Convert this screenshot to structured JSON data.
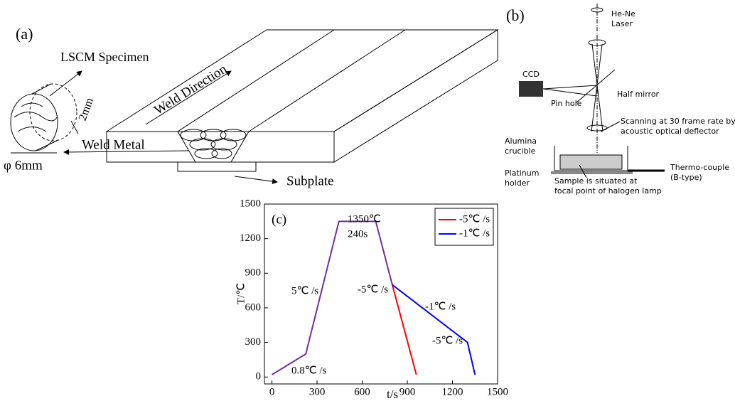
{
  "diagram_a": {
    "label": "(a)",
    "specimen": "LSCM Specimen",
    "direction": "Weld Direction",
    "metal": "Weld Metal",
    "thickness": "2mm",
    "diameter": "φ 6mm",
    "subplate": "Subplate"
  },
  "diagram_b": {
    "label": "(b)",
    "laser": [
      "He-Ne",
      "Laser"
    ],
    "ccd": "CCD",
    "pinhole": "Pin hole",
    "mirror": "Half mirror",
    "scanning": [
      "Scanning at 30 frame rate by",
      "acoustic optical deflector"
    ],
    "crucible": [
      "Alumina",
      "crucible"
    ],
    "thermo": [
      "Thermo-couple",
      "(B-type)"
    ],
    "holder": [
      "Platinum",
      "holder"
    ],
    "sample": [
      "Sample is situated at",
      "focal point of halogen lamp"
    ]
  },
  "chart_data": {
    "type": "line",
    "label": "(c)",
    "x_label": "t/s",
    "y_label": "T/℃",
    "xlim": [
      -50,
      1500
    ],
    "xticks": [
      0,
      300,
      600,
      900,
      1200,
      1500
    ],
    "ylim": [
      -60,
      1500
    ],
    "yticks": [
      0,
      300,
      600,
      900,
      1200,
      1500
    ],
    "legend": "upper right",
    "series": [
      {
        "color": "#7030a0",
        "x": [
          0,
          225,
          445,
          690,
          800
        ],
        "values": [
          20,
          200,
          1350,
          1350,
          800
        ]
      },
      {
        "name": "-5℃ /s",
        "color": "#ff0000",
        "x": [
          800,
          960
        ],
        "values": [
          800,
          20
        ]
      },
      {
        "name": "-1℃ /s",
        "color": "#0000ff",
        "x": [
          800,
          1300,
          1350
        ],
        "values": [
          800,
          300,
          20
        ]
      }
    ],
    "annotations": [
      "1350℃",
      "240s",
      "5℃ /s",
      "-5℃ /s",
      "-1℃ /s",
      "0.8℃ /s",
      "-5℃ /s"
    ]
  }
}
